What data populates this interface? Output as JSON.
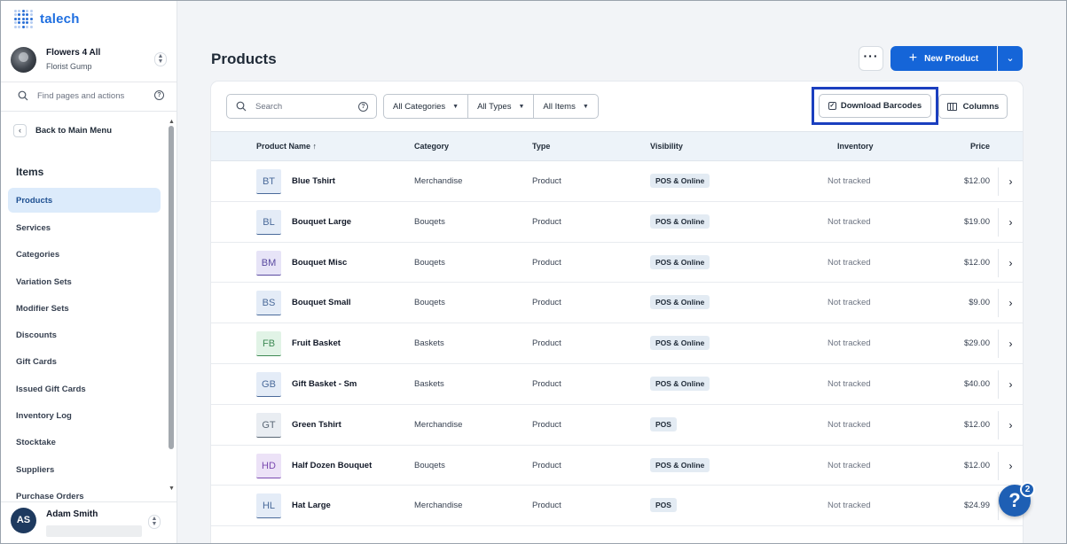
{
  "app": {
    "logo_text": "talech"
  },
  "store": {
    "name": "Flowers 4 All",
    "subtitle": "Florist Gump"
  },
  "sidebar": {
    "find_placeholder": "Find pages and actions",
    "back_label": "Back to Main Menu",
    "section_title": "Items",
    "items": [
      {
        "label": "Products",
        "active": true
      },
      {
        "label": "Services"
      },
      {
        "label": "Categories"
      },
      {
        "label": "Variation Sets"
      },
      {
        "label": "Modifier Sets"
      },
      {
        "label": "Discounts"
      },
      {
        "label": "Gift Cards"
      },
      {
        "label": "Issued Gift Cards"
      },
      {
        "label": "Inventory Log"
      },
      {
        "label": "Stocktake"
      },
      {
        "label": "Suppliers"
      },
      {
        "label": "Purchase Orders"
      }
    ]
  },
  "user": {
    "initials": "AS",
    "name": "Adam Smith"
  },
  "page": {
    "title": "Products",
    "more_label": "···",
    "new_button": "New Product"
  },
  "toolbar": {
    "search_placeholder": "Search",
    "filters": [
      "All Categories",
      "All Types",
      "All Items"
    ],
    "download_barcodes": "Download Barcodes",
    "columns": "Columns"
  },
  "table": {
    "headers": {
      "name": "Product Name ↑",
      "category": "Category",
      "type": "Type",
      "visibility": "Visibility",
      "inventory": "Inventory",
      "price": "Price"
    },
    "rows": [
      {
        "initials": "BT",
        "name": "Blue Tshirt",
        "category": "Merchandise",
        "type": "Product",
        "visibility": "POS & Online",
        "inventory": "Not tracked",
        "price": "$12.00",
        "color": "#e4ecf7",
        "text": "#4a6a9a"
      },
      {
        "initials": "BL",
        "name": "Bouquet Large",
        "category": "Bouqets",
        "type": "Product",
        "visibility": "POS & Online",
        "inventory": "Not tracked",
        "price": "$19.00",
        "color": "#e4ecf7",
        "text": "#4a6a9a"
      },
      {
        "initials": "BM",
        "name": "Bouquet Misc",
        "category": "Bouqets",
        "type": "Product",
        "visibility": "POS & Online",
        "inventory": "Not tracked",
        "price": "$12.00",
        "color": "#e7e4f7",
        "text": "#5a4aa0"
      },
      {
        "initials": "BS",
        "name": "Bouquet Small",
        "category": "Bouqets",
        "type": "Product",
        "visibility": "POS & Online",
        "inventory": "Not tracked",
        "price": "$9.00",
        "color": "#e4ecf7",
        "text": "#4a6a9a"
      },
      {
        "initials": "FB",
        "name": "Fruit Basket",
        "category": "Baskets",
        "type": "Product",
        "visibility": "POS & Online",
        "inventory": "Not tracked",
        "price": "$29.00",
        "color": "#e1f3e6",
        "text": "#3f8a55"
      },
      {
        "initials": "GB",
        "name": "Gift Basket - Sm",
        "category": "Baskets",
        "type": "Product",
        "visibility": "POS & Online",
        "inventory": "Not tracked",
        "price": "$40.00",
        "color": "#e4ecf7",
        "text": "#4a6a9a"
      },
      {
        "initials": "GT",
        "name": "Green Tshirt",
        "category": "Merchandise",
        "type": "Product",
        "visibility": "POS",
        "inventory": "Not tracked",
        "price": "$12.00",
        "color": "#e9edf2",
        "text": "#5a6775"
      },
      {
        "initials": "HD",
        "name": "Half Dozen Bouquet",
        "category": "Bouqets",
        "type": "Product",
        "visibility": "POS & Online",
        "inventory": "Not tracked",
        "price": "$12.00",
        "color": "#ece2f7",
        "text": "#7a4ab0"
      },
      {
        "initials": "HL",
        "name": "Hat Large",
        "category": "Merchandise",
        "type": "Product",
        "visibility": "POS",
        "inventory": "Not tracked",
        "price": "$24.99",
        "color": "#e4ecf7",
        "text": "#4a6a9a"
      }
    ]
  },
  "help": {
    "label": "?",
    "badge": "2"
  },
  "colors": {
    "primary": "#1565d8",
    "highlight": "#1b3fbf",
    "active_nav": "#dcebfb"
  }
}
